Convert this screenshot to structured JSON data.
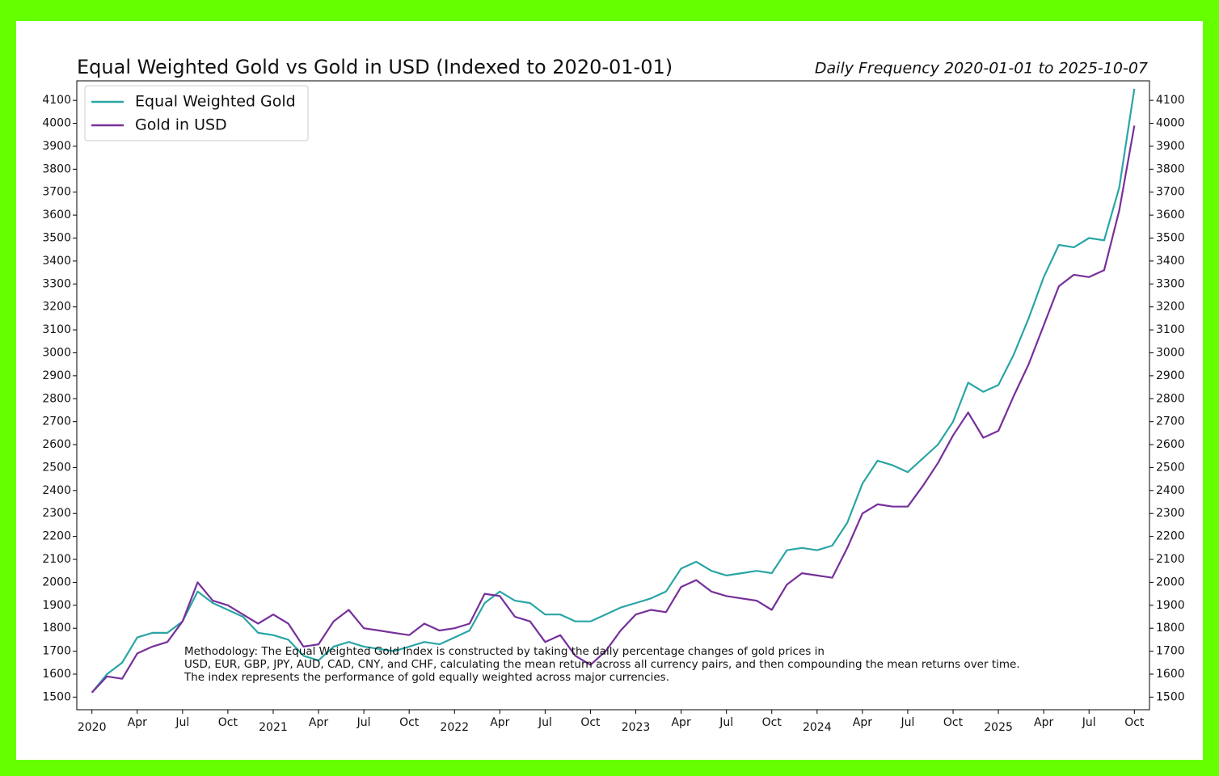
{
  "chart_data": {
    "type": "line",
    "title": "Equal Weighted Gold vs Gold in USD (Indexed to 2020-01-01)",
    "subtitle": "Daily Frequency 2020-01-01 to 2025-10-07",
    "annotation": [
      "Methodology: The Equal Weighted Gold Index is constructed by taking the daily percentage changes of gold prices in",
      "USD, EUR, GBP, JPY, AUD, CAD, CNY, and CHF, calculating the mean return across all currency pairs, and then compounding the mean returns over time.",
      "The index represents the performance of gold equally weighted across major currencies."
    ],
    "legend": "upper left",
    "x": [
      "2020-01",
      "2020-02",
      "2020-03",
      "2020-04",
      "2020-05",
      "2020-06",
      "2020-07",
      "2020-08",
      "2020-09",
      "2020-10",
      "2020-11",
      "2020-12",
      "2021-01",
      "2021-02",
      "2021-03",
      "2021-04",
      "2021-05",
      "2021-06",
      "2021-07",
      "2021-08",
      "2021-09",
      "2021-10",
      "2021-11",
      "2021-12",
      "2022-01",
      "2022-02",
      "2022-03",
      "2022-04",
      "2022-05",
      "2022-06",
      "2022-07",
      "2022-08",
      "2022-09",
      "2022-10",
      "2022-11",
      "2022-12",
      "2023-01",
      "2023-02",
      "2023-03",
      "2023-04",
      "2023-05",
      "2023-06",
      "2023-07",
      "2023-08",
      "2023-09",
      "2023-10",
      "2023-11",
      "2023-12",
      "2024-01",
      "2024-02",
      "2024-03",
      "2024-04",
      "2024-05",
      "2024-06",
      "2024-07",
      "2024-08",
      "2024-09",
      "2024-10",
      "2024-11",
      "2024-12",
      "2025-01",
      "2025-02",
      "2025-03",
      "2025-04",
      "2025-05",
      "2025-06",
      "2025-07",
      "2025-08",
      "2025-09",
      "2025-10"
    ],
    "series": [
      {
        "name": "Equal Weighted Gold",
        "color": "#2aa5a5",
        "values": [
          1520,
          1600,
          1650,
          1760,
          1780,
          1780,
          1830,
          1960,
          1910,
          1880,
          1850,
          1780,
          1770,
          1750,
          1680,
          1660,
          1720,
          1740,
          1720,
          1710,
          1700,
          1720,
          1740,
          1730,
          1760,
          1790,
          1910,
          1960,
          1920,
          1910,
          1860,
          1860,
          1830,
          1830,
          1860,
          1890,
          1910,
          1930,
          1960,
          2060,
          2090,
          2050,
          2030,
          2040,
          2050,
          2040,
          2140,
          2150,
          2140,
          2160,
          2260,
          2430,
          2530,
          2510,
          2480,
          2540,
          2600,
          2700,
          2870,
          2830,
          2860,
          2990,
          3150,
          3330,
          3470,
          3460,
          3500,
          3490,
          3720,
          4150
        ]
      },
      {
        "name": "Gold in USD",
        "color": "#76309a",
        "values": [
          1520,
          1590,
          1580,
          1690,
          1720,
          1740,
          1830,
          2000,
          1920,
          1900,
          1860,
          1820,
          1860,
          1820,
          1720,
          1730,
          1830,
          1880,
          1800,
          1790,
          1780,
          1770,
          1820,
          1790,
          1800,
          1820,
          1950,
          1940,
          1850,
          1830,
          1740,
          1770,
          1680,
          1640,
          1700,
          1790,
          1860,
          1880,
          1870,
          1980,
          2010,
          1960,
          1940,
          1930,
          1920,
          1880,
          1990,
          2040,
          2030,
          2020,
          2150,
          2300,
          2340,
          2330,
          2330,
          2420,
          2520,
          2640,
          2740,
          2630,
          2660,
          2810,
          2950,
          3120,
          3290,
          3340,
          3330,
          3360,
          3620,
          3990
        ]
      }
    ],
    "xlim": [
      "2019-12",
      "2025-11"
    ],
    "xticks": [
      {
        "value": "2020-01",
        "label": "2020"
      },
      {
        "value": "2020-04",
        "label": "Apr"
      },
      {
        "value": "2020-07",
        "label": "Jul"
      },
      {
        "value": "2020-10",
        "label": "Oct"
      },
      {
        "value": "2021-01",
        "label": "2021"
      },
      {
        "value": "2021-04",
        "label": "Apr"
      },
      {
        "value": "2021-07",
        "label": "Jul"
      },
      {
        "value": "2021-10",
        "label": "Oct"
      },
      {
        "value": "2022-01",
        "label": "2022"
      },
      {
        "value": "2022-04",
        "label": "Apr"
      },
      {
        "value": "2022-07",
        "label": "Jul"
      },
      {
        "value": "2022-10",
        "label": "Oct"
      },
      {
        "value": "2023-01",
        "label": "2023"
      },
      {
        "value": "2023-04",
        "label": "Apr"
      },
      {
        "value": "2023-07",
        "label": "Jul"
      },
      {
        "value": "2023-10",
        "label": "Oct"
      },
      {
        "value": "2024-01",
        "label": "2024"
      },
      {
        "value": "2024-04",
        "label": "Apr"
      },
      {
        "value": "2024-07",
        "label": "Jul"
      },
      {
        "value": "2024-10",
        "label": "Oct"
      },
      {
        "value": "2025-01",
        "label": "2025"
      },
      {
        "value": "2025-04",
        "label": "Apr"
      },
      {
        "value": "2025-07",
        "label": "Jul"
      },
      {
        "value": "2025-10",
        "label": "Oct"
      }
    ],
    "ylim": [
      1445,
      4185
    ],
    "yticks": [
      1500,
      1600,
      1700,
      1800,
      1900,
      2000,
      2100,
      2200,
      2300,
      2400,
      2500,
      2600,
      2700,
      2800,
      2900,
      3000,
      3100,
      3200,
      3300,
      3400,
      3500,
      3600,
      3700,
      3800,
      3900,
      4000,
      4100
    ],
    "grid": false
  }
}
